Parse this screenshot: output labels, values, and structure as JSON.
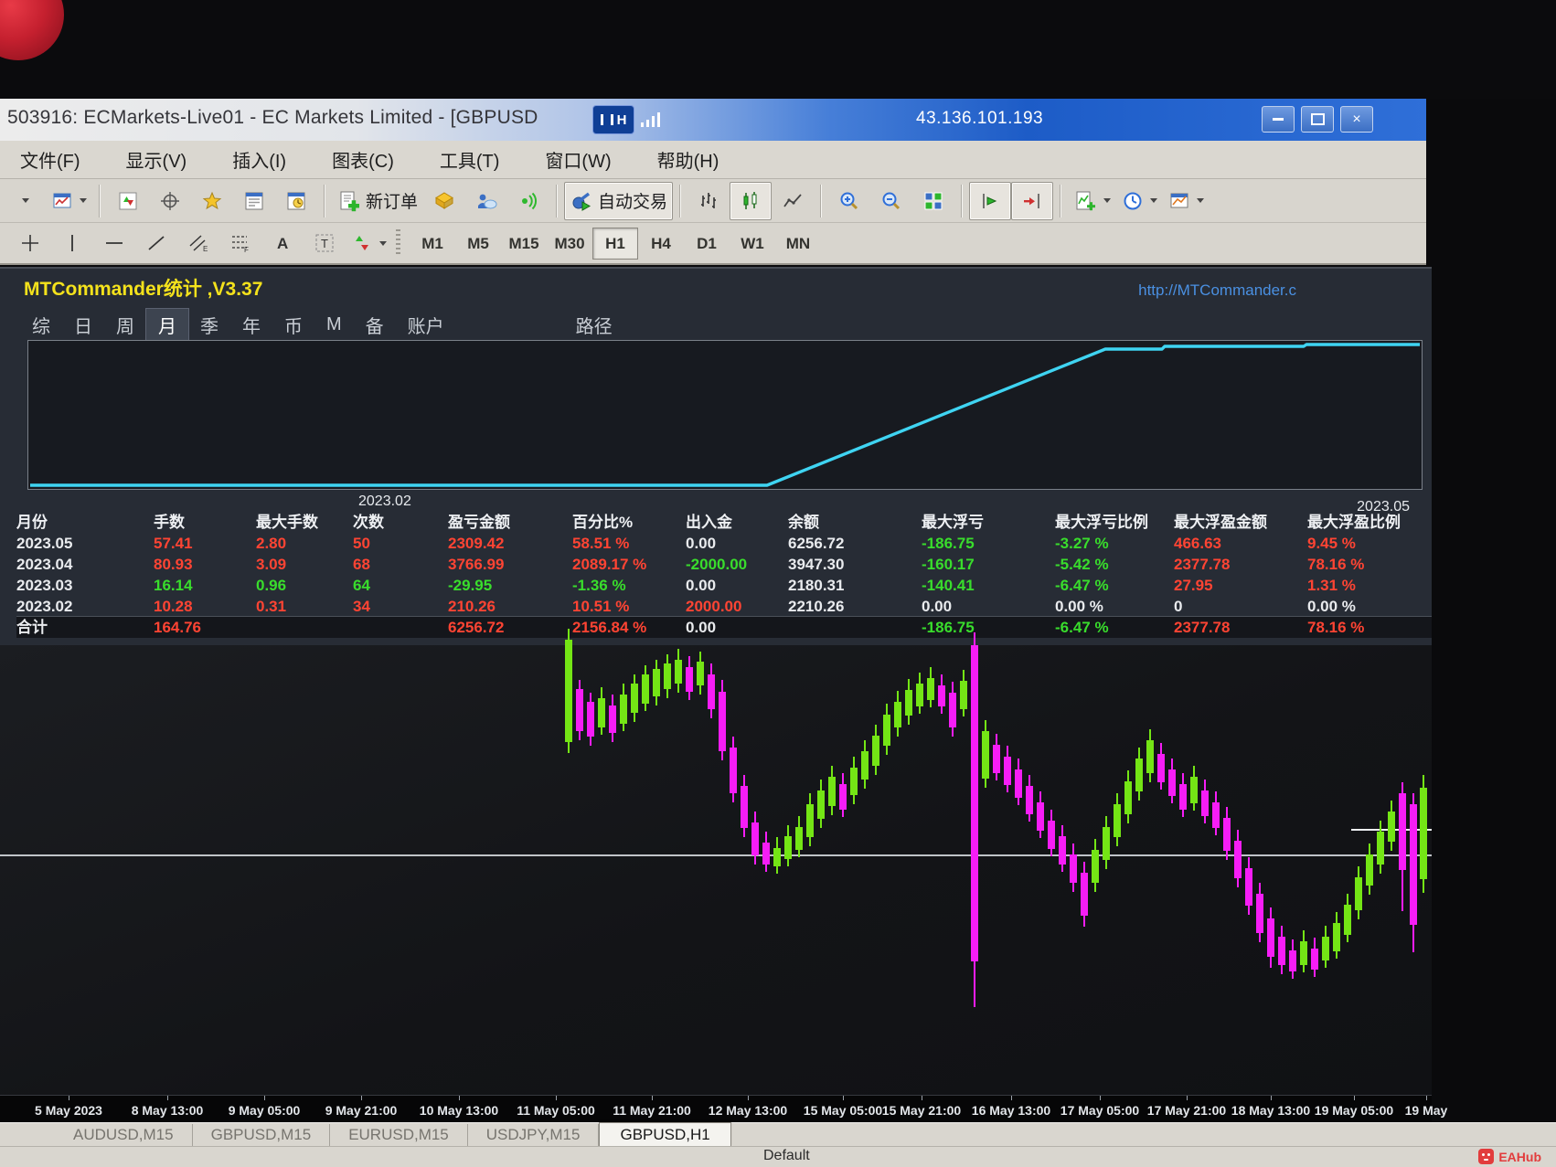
{
  "window": {
    "title": "503916: ECMarkets-Live01 - EC Markets Limited - [GBPUSD",
    "ip": "43.136.101.193",
    "badge": "H"
  },
  "menu": [
    "文件(F)",
    "显示(V)",
    "插入(I)",
    "图表(C)",
    "工具(T)",
    "窗口(W)",
    "帮助(H)"
  ],
  "toolbar": {
    "new_order": "新订单",
    "auto_trading": "自动交易",
    "timeframes": [
      "M1",
      "M5",
      "M15",
      "M30",
      "H1",
      "H4",
      "D1",
      "W1",
      "MN"
    ],
    "active_timeframe": "H1"
  },
  "commander": {
    "title": "MTCommander统计 ,V3.37",
    "link": "http://MTCommander.c",
    "tabs": [
      "综",
      "日",
      "周",
      "月",
      "季",
      "年",
      "币",
      "M",
      "备",
      "账户",
      "路径"
    ],
    "active_tab": "月",
    "period_start": "2023.02",
    "period_end": "2023.05"
  },
  "table": {
    "headers": [
      "月份",
      "手数",
      "最大手数",
      "次数",
      "盈亏金额",
      "百分比%",
      "出入金",
      "余额",
      "最大浮亏",
      "最大浮亏比例",
      "最大浮盈金额",
      "最大浮盈比例"
    ],
    "rows": [
      {
        "cells": [
          [
            "2023.05",
            "w"
          ],
          [
            "57.41",
            "r"
          ],
          [
            "2.80",
            "r"
          ],
          [
            "50",
            "r"
          ],
          [
            "2309.42",
            "r"
          ],
          [
            "58.51 %",
            "r"
          ],
          [
            "0.00",
            "w"
          ],
          [
            "6256.72",
            "w"
          ],
          [
            "-186.75",
            "g"
          ],
          [
            "-3.27 %",
            "g"
          ],
          [
            "466.63",
            "r"
          ],
          [
            "9.45 %",
            "r"
          ]
        ]
      },
      {
        "cells": [
          [
            "2023.04",
            "w"
          ],
          [
            "80.93",
            "r"
          ],
          [
            "3.09",
            "r"
          ],
          [
            "68",
            "r"
          ],
          [
            "3766.99",
            "r"
          ],
          [
            "2089.17 %",
            "r"
          ],
          [
            "-2000.00",
            "g"
          ],
          [
            "3947.30",
            "w"
          ],
          [
            "-160.17",
            "g"
          ],
          [
            "-5.42 %",
            "g"
          ],
          [
            "2377.78",
            "r"
          ],
          [
            "78.16 %",
            "r"
          ]
        ]
      },
      {
        "cells": [
          [
            "2023.03",
            "w"
          ],
          [
            "16.14",
            "g"
          ],
          [
            "0.96",
            "g"
          ],
          [
            "64",
            "g"
          ],
          [
            "-29.95",
            "g"
          ],
          [
            "-1.36 %",
            "g"
          ],
          [
            "0.00",
            "w"
          ],
          [
            "2180.31",
            "w"
          ],
          [
            "-140.41",
            "g"
          ],
          [
            "-6.47 %",
            "g"
          ],
          [
            "27.95",
            "r"
          ],
          [
            "1.31 %",
            "r"
          ]
        ]
      },
      {
        "cells": [
          [
            "2023.02",
            "w"
          ],
          [
            "10.28",
            "r"
          ],
          [
            "0.31",
            "r"
          ],
          [
            "34",
            "r"
          ],
          [
            "210.26",
            "r"
          ],
          [
            "10.51 %",
            "r"
          ],
          [
            "2000.00",
            "r"
          ],
          [
            "2210.26",
            "w"
          ],
          [
            "0.00",
            "w"
          ],
          [
            "0.00 %",
            "w"
          ],
          [
            "0",
            "w"
          ],
          [
            "0.00 %",
            "w"
          ]
        ]
      },
      {
        "cells": [
          [
            "合计",
            "w"
          ],
          [
            "164.76",
            "r"
          ],
          [
            "",
            ""
          ],
          [
            "",
            ""
          ],
          [
            "6256.72",
            "r"
          ],
          [
            "2156.84 %",
            "r"
          ],
          [
            "0.00",
            "w"
          ],
          [
            "",
            ""
          ],
          [
            "-186.75",
            "g"
          ],
          [
            "-6.47 %",
            "g"
          ],
          [
            "2377.78",
            "r"
          ],
          [
            "78.16 %",
            "r"
          ]
        ],
        "total": true
      }
    ]
  },
  "chart_data": [
    {
      "type": "line",
      "title": "equity-curve",
      "color": "#3fd4f2",
      "x_labels": [
        "2023.02",
        "2023.05"
      ],
      "points": [
        [
          2,
          158
        ],
        [
          808,
          158
        ],
        [
          1178,
          9
        ],
        [
          1240,
          9
        ],
        [
          1243,
          6
        ],
        [
          1395,
          6
        ],
        [
          1398,
          4
        ],
        [
          1522,
          4
        ]
      ]
    },
    {
      "type": "candlestick",
      "title": "GBPUSD H1",
      "up_color": "#74e515",
      "down_color": "#f61df6",
      "candles": [
        [
          622,
          688,
          700,
          812,
          824,
          1
        ],
        [
          634,
          744,
          754,
          800,
          810,
          0
        ],
        [
          646,
          758,
          768,
          806,
          816,
          0
        ],
        [
          658,
          752,
          764,
          796,
          804,
          1
        ],
        [
          670,
          760,
          772,
          802,
          812,
          0
        ],
        [
          682,
          748,
          760,
          792,
          800,
          1
        ],
        [
          694,
          738,
          748,
          780,
          790,
          1
        ],
        [
          706,
          728,
          738,
          770,
          778,
          1
        ],
        [
          718,
          722,
          732,
          762,
          772,
          1
        ],
        [
          730,
          716,
          726,
          754,
          764,
          1
        ],
        [
          742,
          710,
          722,
          748,
          758,
          1
        ],
        [
          754,
          718,
          730,
          757,
          766,
          0
        ],
        [
          766,
          713,
          724,
          750,
          760,
          1
        ],
        [
          778,
          726,
          738,
          776,
          786,
          0
        ],
        [
          790,
          744,
          757,
          822,
          832,
          0
        ],
        [
          802,
          806,
          818,
          868,
          878,
          0
        ],
        [
          814,
          848,
          860,
          906,
          916,
          0
        ],
        [
          826,
          888,
          900,
          936,
          946,
          0
        ],
        [
          838,
          910,
          922,
          946,
          954,
          0
        ],
        [
          850,
          916,
          928,
          948,
          956,
          1
        ],
        [
          862,
          903,
          915,
          940,
          948,
          1
        ],
        [
          874,
          893,
          905,
          930,
          938,
          1
        ],
        [
          886,
          868,
          880,
          916,
          926,
          1
        ],
        [
          898,
          853,
          865,
          896,
          906,
          1
        ],
        [
          910,
          838,
          850,
          882,
          892,
          1
        ],
        [
          922,
          846,
          858,
          886,
          894,
          0
        ],
        [
          934,
          828,
          840,
          870,
          880,
          1
        ],
        [
          946,
          810,
          822,
          853,
          863,
          1
        ],
        [
          958,
          793,
          805,
          838,
          848,
          1
        ],
        [
          970,
          770,
          782,
          816,
          826,
          1
        ],
        [
          982,
          756,
          768,
          796,
          806,
          1
        ],
        [
          994,
          743,
          755,
          783,
          793,
          1
        ],
        [
          1006,
          736,
          748,
          773,
          781,
          1
        ],
        [
          1018,
          730,
          742,
          766,
          774,
          1
        ],
        [
          1030,
          738,
          750,
          773,
          781,
          0
        ],
        [
          1042,
          746,
          758,
          796,
          806,
          0
        ],
        [
          1054,
          733,
          745,
          776,
          784,
          1
        ],
        [
          1066,
          692,
          706,
          1052,
          1102,
          0
        ],
        [
          1078,
          788,
          800,
          852,
          862,
          1
        ],
        [
          1090,
          803,
          815,
          846,
          854,
          0
        ],
        [
          1102,
          816,
          828,
          859,
          867,
          0
        ],
        [
          1114,
          830,
          842,
          873,
          881,
          0
        ],
        [
          1126,
          848,
          860,
          891,
          899,
          0
        ],
        [
          1138,
          866,
          878,
          909,
          917,
          0
        ],
        [
          1150,
          886,
          898,
          929,
          937,
          0
        ],
        [
          1162,
          903,
          915,
          946,
          954,
          0
        ],
        [
          1174,
          923,
          935,
          966,
          976,
          0
        ],
        [
          1186,
          943,
          955,
          1002,
          1014,
          0
        ],
        [
          1198,
          918,
          930,
          966,
          976,
          1
        ],
        [
          1210,
          893,
          905,
          941,
          951,
          1
        ],
        [
          1222,
          868,
          880,
          916,
          926,
          1
        ],
        [
          1234,
          843,
          855,
          891,
          901,
          1
        ],
        [
          1246,
          818,
          830,
          866,
          876,
          1
        ],
        [
          1258,
          798,
          810,
          846,
          856,
          1
        ],
        [
          1270,
          813,
          825,
          856,
          864,
          0
        ],
        [
          1282,
          830,
          842,
          871,
          879,
          0
        ],
        [
          1294,
          846,
          858,
          886,
          894,
          0
        ],
        [
          1306,
          838,
          850,
          879,
          887,
          1
        ],
        [
          1318,
          853,
          865,
          893,
          901,
          0
        ],
        [
          1330,
          866,
          878,
          906,
          914,
          0
        ],
        [
          1342,
          883,
          895,
          931,
          941,
          0
        ],
        [
          1354,
          908,
          920,
          961,
          971,
          0
        ],
        [
          1366,
          938,
          950,
          991,
          1001,
          0
        ],
        [
          1378,
          966,
          978,
          1021,
          1031,
          0
        ],
        [
          1390,
          993,
          1005,
          1047,
          1059,
          0
        ],
        [
          1402,
          1013,
          1025,
          1056,
          1066,
          0
        ],
        [
          1414,
          1028,
          1040,
          1063,
          1071,
          0
        ],
        [
          1426,
          1018,
          1030,
          1056,
          1064,
          1
        ],
        [
          1438,
          1026,
          1038,
          1061,
          1069,
          0
        ],
        [
          1450,
          1013,
          1025,
          1051,
          1059,
          1
        ],
        [
          1462,
          998,
          1010,
          1041,
          1049,
          1
        ],
        [
          1474,
          978,
          990,
          1023,
          1031,
          1
        ],
        [
          1486,
          948,
          960,
          996,
          1006,
          1
        ],
        [
          1498,
          923,
          935,
          969,
          979,
          1
        ],
        [
          1510,
          898,
          910,
          946,
          956,
          1
        ],
        [
          1522,
          876,
          888,
          921,
          931,
          1
        ],
        [
          1534,
          856,
          868,
          952,
          997,
          0
        ],
        [
          1546,
          868,
          880,
          1012,
          1042,
          0
        ],
        [
          1557,
          848,
          862,
          962,
          977,
          1
        ]
      ]
    }
  ],
  "timeline": [
    [
      "5 May 2023",
      75
    ],
    [
      "8 May 13:00",
      183
    ],
    [
      "9 May 05:00",
      289
    ],
    [
      "9 May 21:00",
      395
    ],
    [
      "10 May 13:00",
      502
    ],
    [
      "11 May 05:00",
      608
    ],
    [
      "11 May 21:00",
      713
    ],
    [
      "12 May 13:00",
      818
    ],
    [
      "15 May 05:00",
      922
    ],
    [
      "15 May 21:00",
      1008
    ],
    [
      "16 May 13:00",
      1106
    ],
    [
      "17 May 05:00",
      1203
    ],
    [
      "17 May 21:00",
      1298
    ],
    [
      "18 May 13:00",
      1390
    ],
    [
      "19 May 05:00",
      1481
    ],
    [
      "19 May",
      1560
    ]
  ],
  "chart_tabs": {
    "items": [
      "AUDUSD,M15",
      "GBPUSD,M15",
      "EURUSD,M15",
      "USDJPY,M15",
      "GBPUSD,H1"
    ],
    "active": "GBPUSD,H1"
  },
  "status": {
    "template": "Default",
    "brand": "EAHub"
  }
}
